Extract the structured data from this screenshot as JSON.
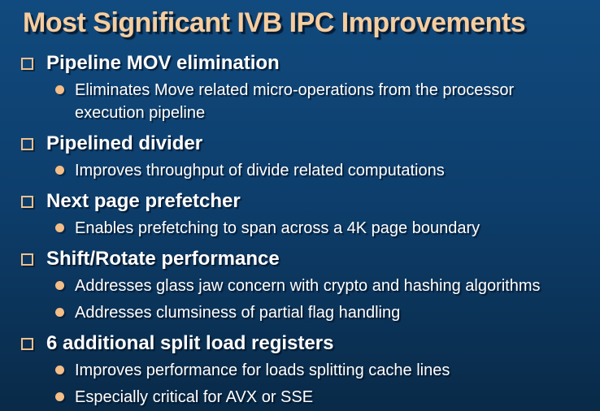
{
  "slide": {
    "title": "Most Significant IVB IPC Improvements",
    "bullets": [
      {
        "label": "Pipeline MOV elimination",
        "subs": [
          "Eliminates Move related micro-operations from the processor execution pipeline"
        ]
      },
      {
        "label": "Pipelined divider",
        "subs": [
          "Improves throughput of divide related computations"
        ]
      },
      {
        "label": "Next page prefetcher",
        "subs": [
          "Enables prefetching to span across a 4K page boundary"
        ]
      },
      {
        "label": "Shift/Rotate performance",
        "subs": [
          "Addresses glass jaw concern with crypto and hashing algorithms",
          "Addresses clumsiness of partial flag handling"
        ]
      },
      {
        "label": "6 additional split load registers",
        "subs": [
          "Improves performance for loads splitting cache lines",
          "Especially critical for AVX or SSE"
        ]
      }
    ],
    "colors": {
      "background_top": "#114a7e",
      "background_bottom": "#092a48",
      "title_text": "#f6cd9e",
      "bullet_accent": "#f3be88",
      "body_text": "#ffffff"
    }
  }
}
